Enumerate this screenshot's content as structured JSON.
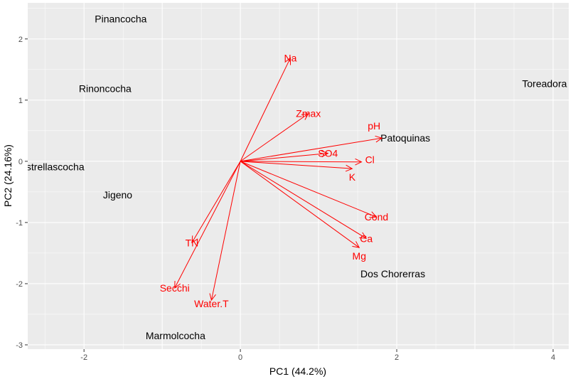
{
  "chart_data": {
    "type": "biplot",
    "xlabel": "PC1 (44.2%)",
    "ylabel": "PC2 (24.16%)",
    "xlim": [
      -2.72,
      4.2
    ],
    "ylim": [
      -3.07,
      2.59
    ],
    "x_ticks": [
      -2,
      0,
      2,
      4
    ],
    "y_ticks": [
      -3,
      -2,
      -1,
      0,
      1,
      2
    ],
    "grid": true,
    "background": "#EBEBEB",
    "arrow_color": "#FF0000",
    "sites": [
      {
        "label": "Pinancocha",
        "x": -1.53,
        "y": 2.33
      },
      {
        "label": "Rinoncocha",
        "x": -1.73,
        "y": 1.19
      },
      {
        "label": "Estrellascocha",
        "x": -2.41,
        "y": -0.09
      },
      {
        "label": "Jigeno",
        "x": -1.57,
        "y": -0.55
      },
      {
        "label": "Marmolcocha",
        "x": -0.83,
        "y": -2.85
      },
      {
        "label": "Dos Chorerras",
        "x": 1.95,
        "y": -1.84
      },
      {
        "label": "Patoquinas",
        "x": 2.11,
        "y": 0.38
      },
      {
        "label": "Toreadora",
        "x": 3.89,
        "y": 1.27
      }
    ],
    "variables": [
      {
        "label": "Na",
        "x": 0.64,
        "y": 1.69
      },
      {
        "label": "Zmax",
        "x": 0.87,
        "y": 0.78
      },
      {
        "label": "pH",
        "x": 1.81,
        "y": 0.38
      },
      {
        "label": "SO4",
        "x": 1.12,
        "y": 0.13
      },
      {
        "label": "Cl",
        "x": 1.55,
        "y": -0.01
      },
      {
        "label": "K",
        "x": 1.43,
        "y": -0.12
      },
      {
        "label": "Cond",
        "x": 1.74,
        "y": -0.91
      },
      {
        "label": "Ca",
        "x": 1.61,
        "y": -1.26
      },
      {
        "label": "Mg",
        "x": 1.52,
        "y": -1.41
      },
      {
        "label": "TN",
        "x": -0.62,
        "y": -1.33
      },
      {
        "label": "Secchi",
        "x": -0.84,
        "y": -2.07
      },
      {
        "label": "Water.T",
        "x": -0.37,
        "y": -2.27
      }
    ]
  }
}
